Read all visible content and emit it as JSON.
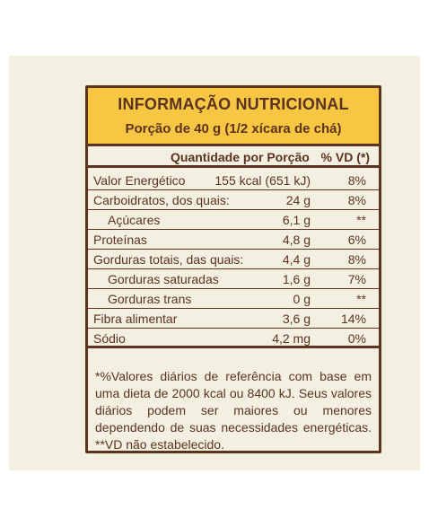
{
  "header": {
    "title": "INFORMAÇÃO NUTRICIONAL",
    "subtitle": "Porção de 40 g (1/2 xícara de chá)"
  },
  "table": {
    "col_quantity": "Quantidade por Porção",
    "col_vd": "% VD (*)",
    "rows": [
      {
        "name": "Valor Energético",
        "qty": "155 kcal (651 kJ)",
        "vd": "8%",
        "indent": false
      },
      {
        "name": "Carboidratos, dos quais:",
        "qty": "24 g",
        "vd": "8%",
        "indent": false
      },
      {
        "name": "Açúcares",
        "qty": "6,1 g",
        "vd": "**",
        "indent": true
      },
      {
        "name": "Proteínas",
        "qty": "4,8 g",
        "vd": "6%",
        "indent": false
      },
      {
        "name": "Gorduras totais, das quais:",
        "qty": "4,4 g",
        "vd": "8%",
        "indent": false
      },
      {
        "name": "Gorduras saturadas",
        "qty": "1,6 g",
        "vd": "7%",
        "indent": true
      },
      {
        "name": "Gorduras trans",
        "qty": "0 g",
        "vd": "**",
        "indent": true
      },
      {
        "name": "Fibra alimentar",
        "qty": "3,6 g",
        "vd": "14%",
        "indent": false
      },
      {
        "name": "Sódio",
        "qty": "4,2 mg",
        "vd": "0%",
        "indent": false
      }
    ]
  },
  "footnote": "*%Valores diários de referência com base em uma dieta de 2000 kcal ou 8400 kJ. Seus valores diários podem ser maiores ou menores dependendo de suas necessidades energéticas. **VD não estabelecido.",
  "colors": {
    "border": "#5b3320",
    "header_bg": "#f7c744",
    "panel_bg": "#f3f0e2"
  }
}
